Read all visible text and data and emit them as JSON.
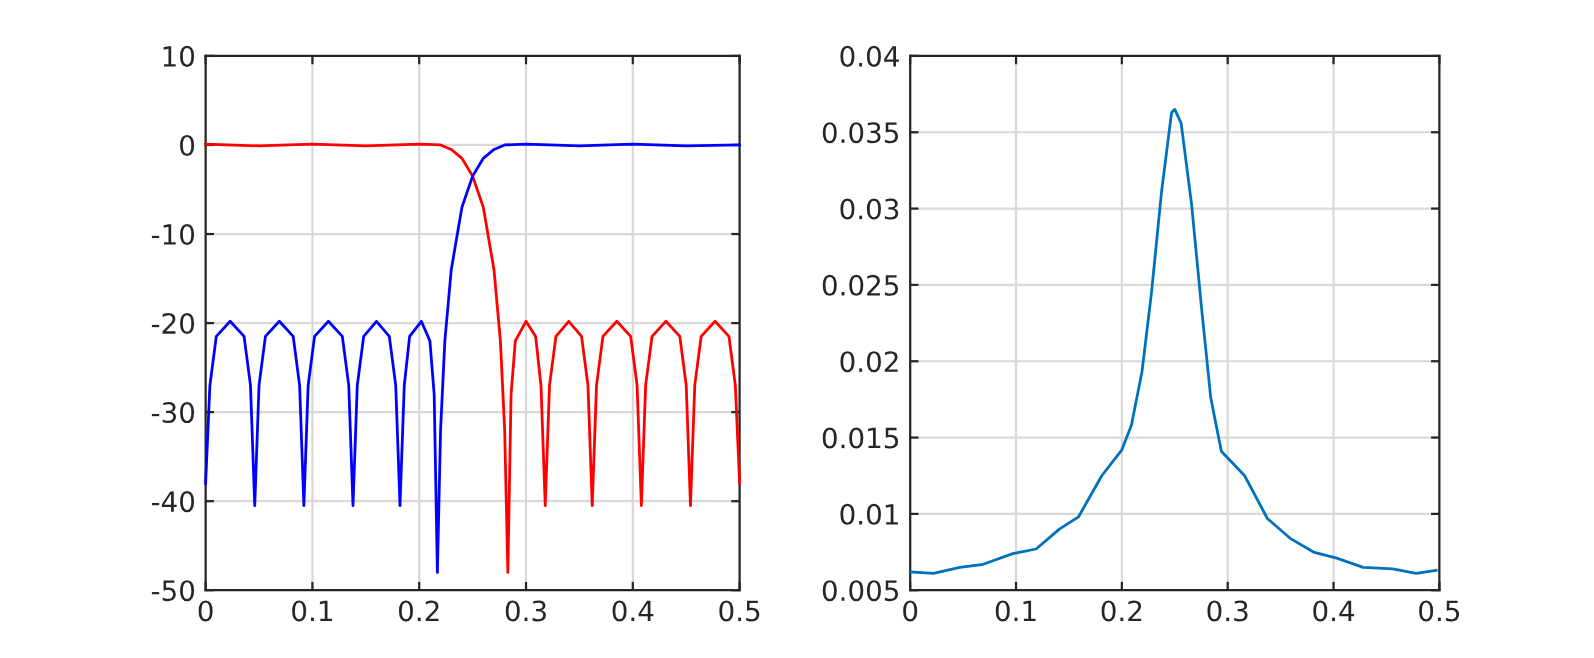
{
  "chart_data": [
    {
      "type": "line",
      "xlim": [
        0,
        0.5
      ],
      "ylim": [
        -50,
        10
      ],
      "xticks": [
        0,
        0.1,
        0.2,
        0.3,
        0.4,
        0.5
      ],
      "yticks": [
        -50,
        -40,
        -30,
        -20,
        -10,
        0,
        10
      ],
      "grid": true,
      "line_style": "solid",
      "series": [
        {
          "color": "#ff0000",
          "x": [
            0,
            0.05,
            0.1,
            0.15,
            0.2,
            0.22,
            0.23,
            0.24,
            0.25,
            0.26,
            0.27,
            0.276,
            0.28,
            0.283,
            0.286,
            0.29,
            0.3,
            0.309,
            0.314,
            0.318,
            0.322,
            0.328,
            0.34,
            0.352,
            0.358,
            0.362,
            0.366,
            0.372,
            0.385,
            0.398,
            0.404,
            0.408,
            0.412,
            0.418,
            0.431,
            0.444,
            0.45,
            0.454,
            0.458,
            0.464,
            0.477,
            0.49,
            0.496,
            0.5
          ],
          "values": [
            0.1,
            -0.1,
            0.1,
            -0.1,
            0.1,
            0,
            -0.5,
            -1.5,
            -3.5,
            -7,
            -14,
            -22,
            -32,
            -48,
            -28,
            -22,
            -19.8,
            -21.5,
            -27,
            -40.5,
            -27,
            -21.5,
            -19.8,
            -21.5,
            -27,
            -40.5,
            -27,
            -21.5,
            -19.8,
            -21.5,
            -27,
            -40.5,
            -27,
            -21.5,
            -19.8,
            -21.5,
            -27,
            -40.5,
            -27,
            -21.5,
            -19.8,
            -21.5,
            -27,
            -38
          ]
        },
        {
          "color": "#0000ff",
          "x": [
            0,
            0.004,
            0.01,
            0.023,
            0.036,
            0.042,
            0.046,
            0.05,
            0.056,
            0.069,
            0.082,
            0.088,
            0.092,
            0.096,
            0.102,
            0.115,
            0.128,
            0.134,
            0.138,
            0.142,
            0.148,
            0.16,
            0.172,
            0.178,
            0.182,
            0.186,
            0.191,
            0.202,
            0.21,
            0.214,
            0.217,
            0.22,
            0.224,
            0.23,
            0.24,
            0.25,
            0.26,
            0.27,
            0.28,
            0.3,
            0.35,
            0.4,
            0.45,
            0.5
          ],
          "values": [
            -38,
            -27,
            -21.5,
            -19.8,
            -21.5,
            -27,
            -40.5,
            -27,
            -21.5,
            -19.8,
            -21.5,
            -27,
            -40.5,
            -27,
            -21.5,
            -19.8,
            -21.5,
            -27,
            -40.5,
            -27,
            -21.5,
            -19.8,
            -21.5,
            -27,
            -40.5,
            -27,
            -21.5,
            -19.8,
            -22,
            -28,
            -48,
            -32,
            -22,
            -14,
            -7,
            -3.5,
            -1.5,
            -0.5,
            0,
            0.1,
            -0.1,
            0.1,
            -0.1,
            0
          ]
        }
      ]
    },
    {
      "type": "line",
      "xlim": [
        0,
        0.5
      ],
      "ylim": [
        0.005,
        0.04
      ],
      "xticks": [
        0,
        0.1,
        0.2,
        0.3,
        0.4,
        0.5
      ],
      "yticks": [
        0.005,
        0.01,
        0.015,
        0.02,
        0.025,
        0.03,
        0.035,
        0.04
      ],
      "grid": true,
      "line_style": "solid",
      "series": [
        {
          "color": "#0072bd",
          "x": [
            0,
            0.022,
            0.047,
            0.069,
            0.097,
            0.119,
            0.141,
            0.159,
            0.181,
            0.2,
            0.209,
            0.219,
            0.228,
            0.2375,
            0.247,
            0.25,
            0.256,
            0.266,
            0.275,
            0.284,
            0.294,
            0.316,
            0.3375,
            0.359,
            0.381,
            0.403,
            0.428,
            0.456,
            0.478,
            0.497
          ],
          "values": [
            0.0062,
            0.0061,
            0.0065,
            0.0067,
            0.0074,
            0.0077,
            0.009,
            0.0098,
            0.0125,
            0.0142,
            0.0158,
            0.0193,
            0.0245,
            0.0311,
            0.0363,
            0.0365,
            0.0356,
            0.0302,
            0.0237,
            0.0176,
            0.0141,
            0.0125,
            0.0097,
            0.0084,
            0.0075,
            0.0071,
            0.0065,
            0.0064,
            0.0061,
            0.0063
          ]
        }
      ]
    }
  ]
}
